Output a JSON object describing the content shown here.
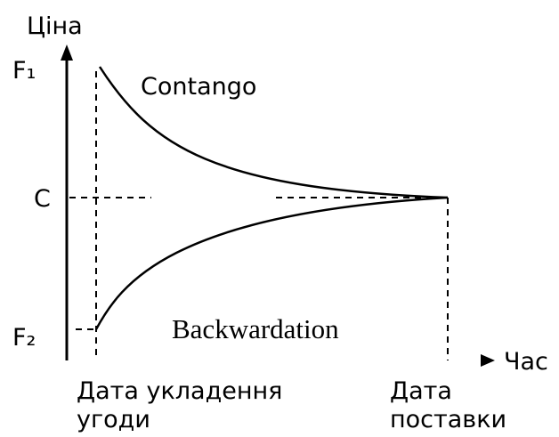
{
  "axes": {
    "y_label": "Ціна",
    "x_label": "Час"
  },
  "levels": {
    "f1": "F₁",
    "c": "C",
    "f2": "F₂"
  },
  "curves": {
    "upper": "Contango",
    "lower": "Backwardation"
  },
  "dates": {
    "start": [
      "Дата укладення",
      "угоди"
    ],
    "end": [
      "Дата",
      "поставки"
    ]
  }
}
